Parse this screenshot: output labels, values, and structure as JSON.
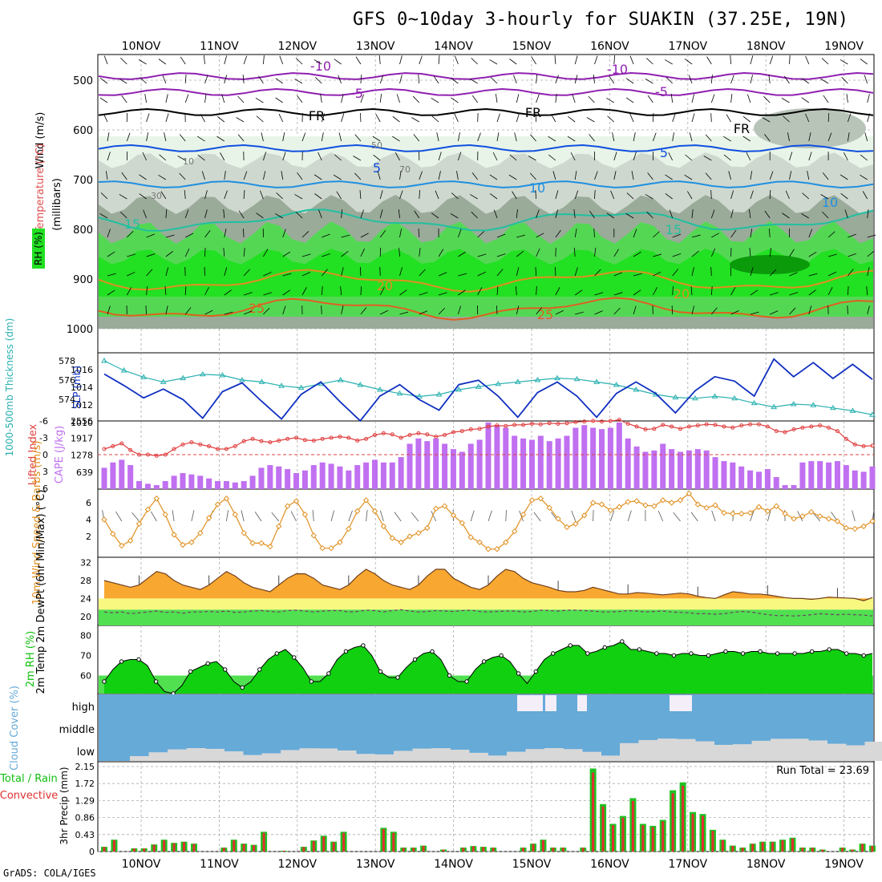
{
  "title": "GFS 0~10day 3-hourly for SUAKIN (37.25E, 19N)",
  "credit": "GrADS: COLA/IGES",
  "dates": [
    "10NOV",
    "11NOV",
    "12NOV",
    "13NOV",
    "14NOV",
    "15NOV",
    "16NOV",
    "17NOV",
    "18NOV",
    "19NOV"
  ],
  "chart_data": [
    {
      "panel": "upper-air",
      "type": "heatmap",
      "ylabel_parts": [
        "RH (%)",
        "Temperature (°C)",
        "Wind (m/s)",
        "(millibars)"
      ],
      "yticks": [
        500,
        600,
        700,
        800,
        900,
        1000
      ],
      "ylim": [
        1000,
        450
      ],
      "isotherm_labels": [
        "-10",
        "-10",
        "-5",
        "-5",
        "FR",
        "FR",
        "FR",
        "5",
        "5",
        "10",
        "10",
        "15",
        "15",
        "20",
        "20",
        "25",
        "25"
      ],
      "rh_labels": [
        "10",
        "30",
        "50",
        "70"
      ],
      "rh_colors": {
        "30": "#e8f4e8",
        "50": "#cfd8cf",
        "70": "#9aab9a",
        "80": "#54d854",
        "90": "#22e022"
      }
    },
    {
      "panel": "thickness-slp",
      "type": "line",
      "ylabel_left": "1000-500mb Thickness (dm)",
      "ylabel_right": "SLP (mb)",
      "yticks_left": [
        "574",
        "576",
        "578"
      ],
      "yticks_right": [
        "1010",
        "1012",
        "1014",
        "1016"
      ],
      "series": [
        {
          "name": "1000-500mb Thickness (dm)",
          "color": "#2ab0b0",
          "values": [
            578,
            577,
            576.3,
            575.8,
            576.2,
            576.6,
            576.5,
            576,
            575.8,
            575.4,
            575.2,
            575.6,
            576,
            575.5,
            575,
            574.6,
            574.3,
            574.5,
            575,
            575.3,
            575.6,
            575.8,
            576,
            576.2,
            576.1,
            575.8,
            575.5,
            575,
            574.5,
            574.2,
            574.1,
            574.3,
            574.1,
            573.6,
            573.2,
            573.5,
            573.4,
            573.1,
            572.8,
            572.4
          ]
        },
        {
          "name": "SLP (mb)",
          "color": "#1030c0",
          "values": [
            1015.5,
            1014.2,
            1012.8,
            1013.8,
            1012.6,
            1010.5,
            1013.5,
            1014.5,
            1012.4,
            1010.4,
            1013.2,
            1014.6,
            1012.3,
            1010.2,
            1013,
            1014.3,
            1012.6,
            1011.4,
            1014.3,
            1014.8,
            1013,
            1010.6,
            1013.4,
            1014.6,
            1013,
            1010.6,
            1013.3,
            1014.6,
            1013.3,
            1011.1,
            1013.6,
            1015.2,
            1014.7,
            1013,
            1017.2,
            1015.2,
            1016.8,
            1015,
            1016.6,
            1014.9
          ]
        }
      ]
    },
    {
      "panel": "cape-li",
      "type": "bar",
      "ylabel_left": "Lifted Index",
      "ylabel_right": "CAPE (J/kg)",
      "yticks_left": [
        "-6",
        "-3",
        "0",
        "3",
        "6"
      ],
      "yticks_right": [
        "639",
        "1278",
        "1917",
        "2556"
      ],
      "cape": [
        800,
        1000,
        1100,
        900,
        300,
        200,
        150,
        300,
        500,
        600,
        550,
        500,
        400,
        300,
        300,
        250,
        300,
        500,
        800,
        900,
        850,
        750,
        600,
        700,
        900,
        1000,
        950,
        850,
        700,
        900,
        1000,
        1100,
        1000,
        1000,
        1200,
        1700,
        1900,
        1800,
        1900,
        1700,
        1500,
        1400,
        1700,
        1850,
        2500,
        2400,
        2300,
        2000,
        1900,
        1850,
        2000,
        1800,
        1900,
        2000,
        2300,
        2400,
        2300,
        2250,
        2300,
        2500,
        1900,
        1600,
        1400,
        1450,
        1700,
        1500,
        1400,
        1450,
        1500,
        1450,
        1200,
        1050,
        1000,
        850,
        700,
        650,
        750,
        450,
        150,
        150,
        1000,
        1050,
        1050,
        1000,
        1050,
        900,
        700,
        650,
        850
      ],
      "lifted_index": [
        -1,
        -1.5,
        -2,
        -0.8,
        0,
        0,
        0.2,
        0,
        -1,
        -1.8,
        -2.2,
        -1.8,
        -1.5,
        -1,
        -1,
        -1.5,
        -2.4,
        -2.8,
        -2.4,
        -2.2,
        -2.5,
        -2.8,
        -3,
        -2.6,
        -2.5,
        -2.8,
        -3,
        -3.2,
        -3,
        -2.5,
        -2.8,
        -3.5,
        -3.8,
        -3.6,
        -3,
        -3.5,
        -3.8,
        -3.6,
        -3.2,
        -3.5,
        -4,
        -4.2,
        -4.5,
        -4.6,
        -5,
        -5.2,
        -5.1,
        -5.3,
        -5.3,
        -5.5,
        -5.4,
        -5.6,
        -5.5,
        -5.6,
        -5.8,
        -5.9,
        -6,
        -5.9,
        -6,
        -6.2,
        -5.5,
        -5,
        -4.5,
        -4.6,
        -5.3,
        -5,
        -4.6,
        -5,
        -5.2,
        -5.4,
        -5.3,
        -5,
        -4.8,
        -5.2,
        -5.4,
        -5.4,
        -5,
        -4.2,
        -4,
        -4.5,
        -4.8,
        -5,
        -5.2,
        -4.8,
        -4.2,
        -2.8,
        -1.8,
        -1.5,
        -1.6
      ]
    },
    {
      "panel": "wind10m",
      "type": "line",
      "ylabel": "10m Wind Speed & Barbs (m/s)",
      "yticks": [
        "2",
        "4",
        "6"
      ],
      "series": [
        {
          "name": "10m Wind Speed",
          "color": "#e09020",
          "values": [
            4,
            2.3,
            0.9,
            1.5,
            3.5,
            5.2,
            6.5,
            4.6,
            2.2,
            1,
            1.3,
            2.4,
            4.2,
            5.8,
            6.5,
            4.6,
            2.4,
            1.2,
            1.2,
            0.8,
            3.2,
            5.6,
            6.2,
            4.6,
            2.1,
            0.6,
            0.6,
            1.3,
            2.9,
            5,
            6.3,
            5,
            3.2,
            1.8,
            1.3,
            2,
            2.4,
            3,
            5.3,
            5.6,
            4.5,
            3.6,
            1.9,
            1.3,
            0.5,
            0.5,
            1.3,
            2.6,
            4.6,
            6.3,
            6.5,
            5.4,
            4.1,
            3.1,
            3.5,
            4.5,
            6,
            5.8,
            5.1,
            5.5,
            6.1,
            6.2,
            5.7,
            5.6,
            6.3,
            6,
            6.3,
            7.1,
            5.8,
            5.4,
            5.7,
            4.8,
            4.7,
            4.7,
            4.8,
            5.5,
            5,
            5.6,
            4.7,
            4.1,
            4.4,
            4.9,
            4.4,
            4.1,
            3.8,
            3,
            2.9,
            3.2,
            3.8
          ]
        }
      ]
    },
    {
      "panel": "temp2m",
      "type": "area",
      "ylabel": "2m Temp 2m DewPt (6hr Min/Max) (°C)",
      "yticks": [
        "20",
        "24",
        "28",
        "32"
      ],
      "series": [
        {
          "name": "2m Temp",
          "values": [
            28,
            27.5,
            27,
            26.5,
            27,
            28.5,
            30,
            29.5,
            28,
            27,
            26.5,
            26,
            27,
            28.5,
            30,
            29,
            27.5,
            26.5,
            26,
            25.5,
            27,
            28.5,
            29.5,
            29.5,
            28.5,
            27,
            26.5,
            26,
            27,
            29,
            30.5,
            29.5,
            28,
            27,
            26.5,
            26,
            27,
            29,
            30.5,
            30.5,
            28.5,
            27.5,
            26.5,
            26,
            27,
            29,
            30.5,
            30,
            28.5,
            27.5,
            27,
            26.5,
            25.8,
            25.5,
            25.5,
            25.8,
            26.5,
            26,
            25.5,
            25,
            25,
            25.3,
            25.2,
            25,
            24.8,
            25,
            25.2,
            25,
            24.5,
            24.2,
            24,
            24.8,
            25.5,
            25.3,
            25,
            25,
            24.8,
            24.5,
            24.2,
            24,
            24,
            23.8,
            24,
            24.3,
            24.2,
            24.1,
            24,
            23.5,
            24.2
          ]
        },
        {
          "name": "2m DewPt",
          "values": [
            21,
            20.8,
            21,
            20.6,
            20.8,
            21,
            21.2,
            20.9,
            21,
            20.7,
            21,
            21,
            21.1,
            21,
            21.2,
            20.9,
            21,
            21.2,
            21.3,
            21.1,
            21,
            21.3,
            21.4,
            21.2,
            21,
            21.2,
            21.3,
            21.3,
            21,
            21.1,
            21.4,
            21.3,
            21,
            21.3,
            21.5,
            21.2,
            21,
            21.1,
            21.3,
            21.2,
            21.1,
            21.3,
            21.4,
            21.1,
            21,
            21.1,
            21.2,
            21.2,
            21,
            21.1,
            21.4,
            21.3,
            21.2,
            21.4,
            21.4,
            21.3,
            21.2,
            21,
            21,
            21.1,
            21.3,
            21.2,
            21,
            21.1,
            21.2,
            21,
            20.9,
            20.8,
            20.6,
            20.6,
            20.5,
            20.6,
            20.9,
            21.1,
            21,
            20.7,
            20.4,
            20.2,
            20.2,
            20.1,
            20.2,
            20.4,
            20.6,
            20.5,
            20.4,
            20.5,
            20.4,
            20.3,
            20.1
          ]
        }
      ]
    },
    {
      "panel": "rh2m",
      "type": "area",
      "ylabel": "2m RH (%)",
      "yticks": [
        "60",
        "70",
        "80"
      ],
      "values": [
        57,
        63,
        67,
        68,
        68,
        65,
        57,
        52,
        51,
        55,
        62,
        64,
        66,
        67,
        63,
        57,
        54,
        57,
        63,
        68,
        71,
        73,
        69,
        64,
        57,
        57,
        61,
        68,
        72,
        74,
        75,
        70,
        62,
        59,
        59,
        64,
        68,
        71,
        72,
        68,
        60,
        57,
        57,
        63,
        67,
        69,
        70,
        67,
        61,
        56,
        62,
        68,
        71,
        73,
        75,
        75,
        71,
        72,
        74,
        75,
        77,
        73,
        73,
        72,
        71,
        71,
        70,
        71,
        71,
        70,
        70,
        71,
        72,
        72,
        71,
        72,
        72,
        71,
        71,
        71,
        71,
        71,
        72,
        72,
        73,
        73,
        71,
        71,
        70,
        71
      ]
    },
    {
      "panel": "cloud",
      "type": "area",
      "ylabel": "Cloud Cover (%)",
      "ylabels": [
        "high",
        "middle",
        "low"
      ]
    },
    {
      "panel": "precip",
      "type": "bar",
      "ylabel": "3hr Precip (mm)",
      "ylabel_left_top": "Total / Rain",
      "ylabel_left_bottom": "Convective",
      "yticks": [
        "0",
        "0.43",
        "0.86",
        "1.29",
        "1.72",
        "2.15"
      ],
      "run_total_label": "Run Total = 23.69",
      "values": [
        0.12,
        0.3,
        0,
        0.08,
        0.08,
        0.18,
        0.3,
        0.22,
        0.25,
        0.2,
        0,
        0,
        0.1,
        0.3,
        0.2,
        0.17,
        0.5,
        0,
        0.02,
        0,
        0.12,
        0.28,
        0.4,
        0.25,
        0.5,
        0,
        0,
        0,
        0.6,
        0.5,
        0.1,
        0.1,
        0.15,
        0,
        0.05,
        0,
        0.1,
        0.14,
        0.12,
        0.1,
        0,
        0,
        0.1,
        0.2,
        0.3,
        0.1,
        0.1,
        0,
        0.1,
        2.1,
        1.2,
        0.7,
        0.9,
        1.35,
        0.7,
        0.65,
        0.8,
        1.55,
        1.75,
        1,
        0.95,
        0.55,
        0.3,
        0.15,
        0.1,
        0.2,
        0.25,
        0.25,
        0.3,
        0.35,
        0.1,
        0.1,
        0.05,
        0,
        0.1,
        0.05,
        0.2,
        0.15
      ]
    }
  ]
}
